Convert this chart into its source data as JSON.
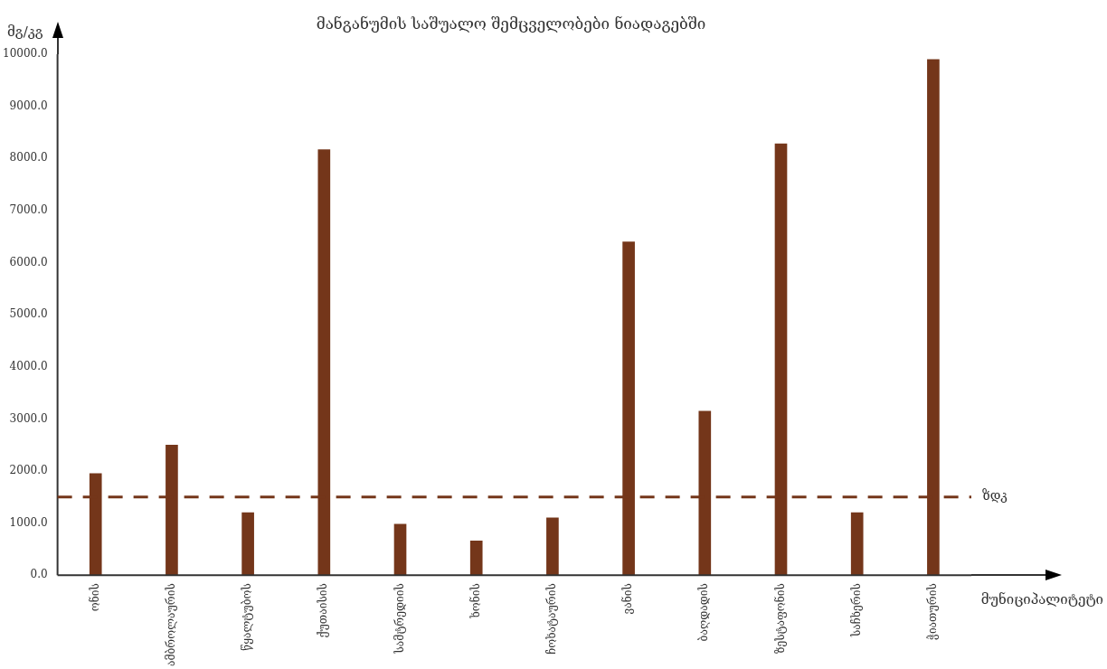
{
  "chart_data": {
    "type": "bar",
    "title": "მანგანუმის საშუალო შემცველობები ნიადაგებში",
    "xlabel": "მუნიციპალიტეტი",
    "ylabel": "მგ/კგ",
    "categories": [
      "ონის",
      "ამბროლაურის",
      "წყალტუბოს",
      "ქუთაისის",
      "სამტრედიის",
      "ხონის",
      "ჩოხატაურის",
      "ვანის",
      "ბაღდადის",
      "ზესტაფონის",
      "საჩხერის",
      "ჭიათურის"
    ],
    "values": [
      1950,
      2500,
      1200,
      8170,
      980,
      660,
      1100,
      6400,
      3150,
      8280,
      1200,
      9900
    ],
    "color": "#74361a",
    "ylim": [
      0,
      10000
    ],
    "yticks": [
      {
        "value": 0,
        "label": "0.0"
      },
      {
        "value": 1000,
        "label": "1000.0"
      },
      {
        "value": 2000,
        "label": "2000.0"
      },
      {
        "value": 3000,
        "label": "3000.0"
      },
      {
        "value": 4000,
        "label": "4000.0"
      },
      {
        "value": 5000,
        "label": "5000.0"
      },
      {
        "value": 6000,
        "label": "6000.0"
      },
      {
        "value": 7000,
        "label": "7000.0"
      },
      {
        "value": 8000,
        "label": "8000.0"
      },
      {
        "value": 9000,
        "label": "9000.0"
      },
      {
        "value": 10000,
        "label": "10000.0"
      }
    ],
    "ref_lines": [
      {
        "axis": "y",
        "value": 1500,
        "label": "ზდკ",
        "color": "#74361a",
        "line_style": "dashed"
      }
    ],
    "grid": false,
    "legend": false
  }
}
